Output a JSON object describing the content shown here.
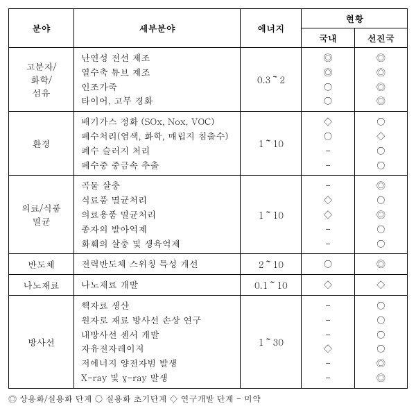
{
  "header": {
    "field": "분야",
    "subfield": "세부분야",
    "energy": "에너지",
    "status": "현황",
    "domestic": "국내",
    "advanced": "선진국"
  },
  "rows": [
    {
      "field": "고분자/\n화학/\n섬유",
      "subs": [
        "난연성 전선 제조",
        "열수축 튜브 제조",
        "인조가죽",
        "타이어, 고무 경화"
      ],
      "energy": "0.3～2",
      "domestic": [
        "◎",
        "◎",
        "○",
        "○"
      ],
      "advanced": [
        "◎",
        "◎",
        "◎",
        "◎"
      ]
    },
    {
      "field": "환경",
      "subs": [
        "배기가스 정화 (SOx, Nox, VOC)",
        "폐수처리(염색, 화학, 매립지 침출수)",
        "폐수 슬러지 처리",
        "폐수중 중금속 추출"
      ],
      "energy": "1～10",
      "domestic": [
        "◇",
        "○",
        "-",
        "-"
      ],
      "advanced": [
        "○",
        "◇",
        "○",
        "○"
      ]
    },
    {
      "field": "의료/식품\n멸균",
      "subs": [
        "곡물 살충",
        "식료품 멸균처리",
        "의료용품 멸균처리",
        "종자의 발아억제",
        "화훼의 살충 및 생육억제"
      ],
      "energy": "1～10",
      "domestic": [
        "-",
        "◇",
        "◇",
        "-",
        "-"
      ],
      "advanced": [
        "◎",
        "○",
        "◎",
        "○",
        "○"
      ]
    },
    {
      "field": "반도체",
      "subs": [
        "전력반도체 스위칭 특성 개선"
      ],
      "energy": "2～10",
      "domestic": [
        "○"
      ],
      "advanced": [
        "◎"
      ]
    },
    {
      "field": "나노재료",
      "subs": [
        "나노재료 개발"
      ],
      "energy": "0.1～10",
      "domestic": [
        "◇"
      ],
      "advanced": [
        "◇"
      ]
    },
    {
      "field": "방사선",
      "subs": [
        "핵자료 생산",
        "원자로 재료 방사선 손상 연구",
        "내방사선 센서 개발",
        "자유전자레이저",
        "저에너지 양전자빔 발생",
        "X-ray 및 γ-ray 발생"
      ],
      "energy": "1～30",
      "domestic": [
        "-",
        "-",
        "-",
        "◇",
        "-",
        "-"
      ],
      "advanced": [
        "○",
        "○",
        "○",
        "○",
        "◎",
        "◎"
      ]
    }
  ],
  "legend": "◎ 상용화/실용화 단계 ○ 실용화 초기단계 ◇ 연구개발 단계 - 미약"
}
